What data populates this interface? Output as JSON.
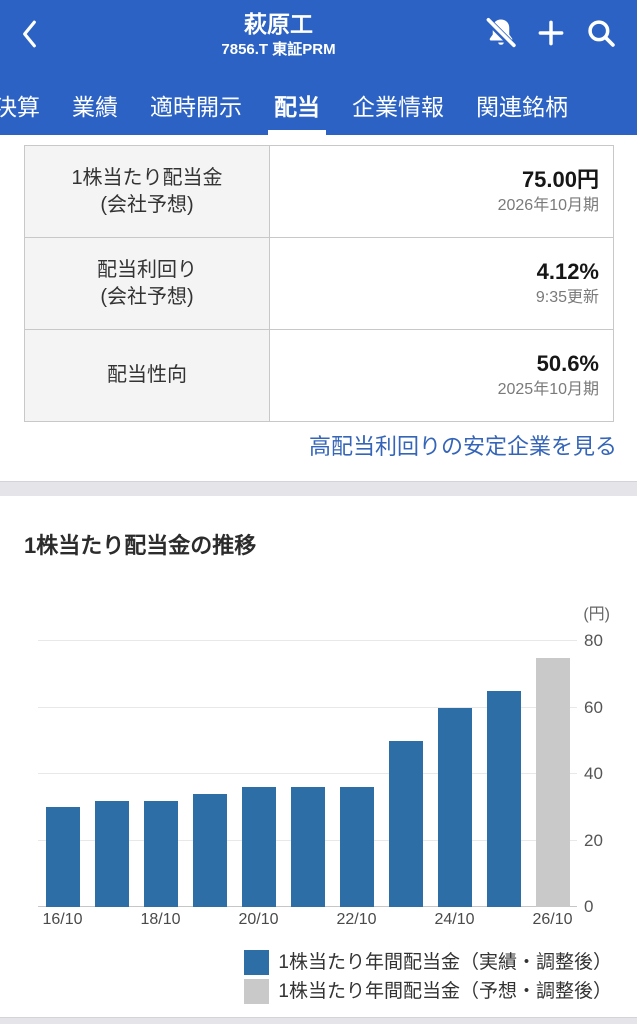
{
  "header": {
    "title": "萩原工",
    "subtitle": "7856.T 東証PRM",
    "tabs": [
      {
        "name": "tab-kessan",
        "label": "決算",
        "active": false
      },
      {
        "name": "tab-gyoseki",
        "label": "業績",
        "active": false
      },
      {
        "name": "tab-tekiji-kaiji",
        "label": "適時開示",
        "active": false
      },
      {
        "name": "tab-haito",
        "label": "配当",
        "active": true
      },
      {
        "name": "tab-kigyo-joho",
        "label": "企業情報",
        "active": false
      },
      {
        "name": "tab-kanren-meigara",
        "label": "関連銘柄",
        "active": false
      }
    ]
  },
  "dividend_table": {
    "rows": [
      {
        "name": "row-dps-forecast",
        "label_line1": "1株当たり配当金",
        "label_line2": "(会社予想)",
        "value": "75.00円",
        "note": "2026年10月期"
      },
      {
        "name": "row-yield-forecast",
        "label_line1": "配当利回り",
        "label_line2": "(会社予想)",
        "value": "4.12%",
        "note": "9:35更新"
      },
      {
        "name": "row-payout-ratio",
        "label_line1": "配当性向",
        "label_line2": "",
        "value": "50.6%",
        "note": "2025年10月期"
      }
    ],
    "link_label": "高配当利回りの安定企業を見る"
  },
  "chart_section": {
    "title": "1株当たり配当金の推移",
    "unit_label": "(円)"
  },
  "chart_data": {
    "type": "bar",
    "title": "1株当たり配当金の推移",
    "ylabel": "円",
    "categories": [
      "16/10",
      "17/10",
      "18/10",
      "19/10",
      "20/10",
      "21/10",
      "22/10",
      "23/10",
      "24/10",
      "25/10",
      "26/10"
    ],
    "series": [
      {
        "name": "1株当たり年間配当金（実績・調整後）",
        "color": "#2e6ea6",
        "values": [
          30,
          32,
          32,
          34,
          36,
          36,
          36,
          50,
          60,
          65,
          null
        ]
      },
      {
        "name": "1株当たり年間配当金（予想・調整後）",
        "color": "#c9c9c9",
        "values": [
          null,
          null,
          null,
          null,
          null,
          null,
          null,
          null,
          null,
          null,
          75
        ]
      }
    ],
    "ylim": [
      0,
      80
    ],
    "yticks": [
      0,
      20,
      40,
      60,
      80
    ],
    "x_label_every": 2,
    "grid": true,
    "legend_position": "bottom-right"
  },
  "colors": {
    "header_bg": "#2b62c4",
    "bar_actual": "#2e6ea6",
    "bar_forecast": "#c9c9c9",
    "link": "#3565b8"
  }
}
